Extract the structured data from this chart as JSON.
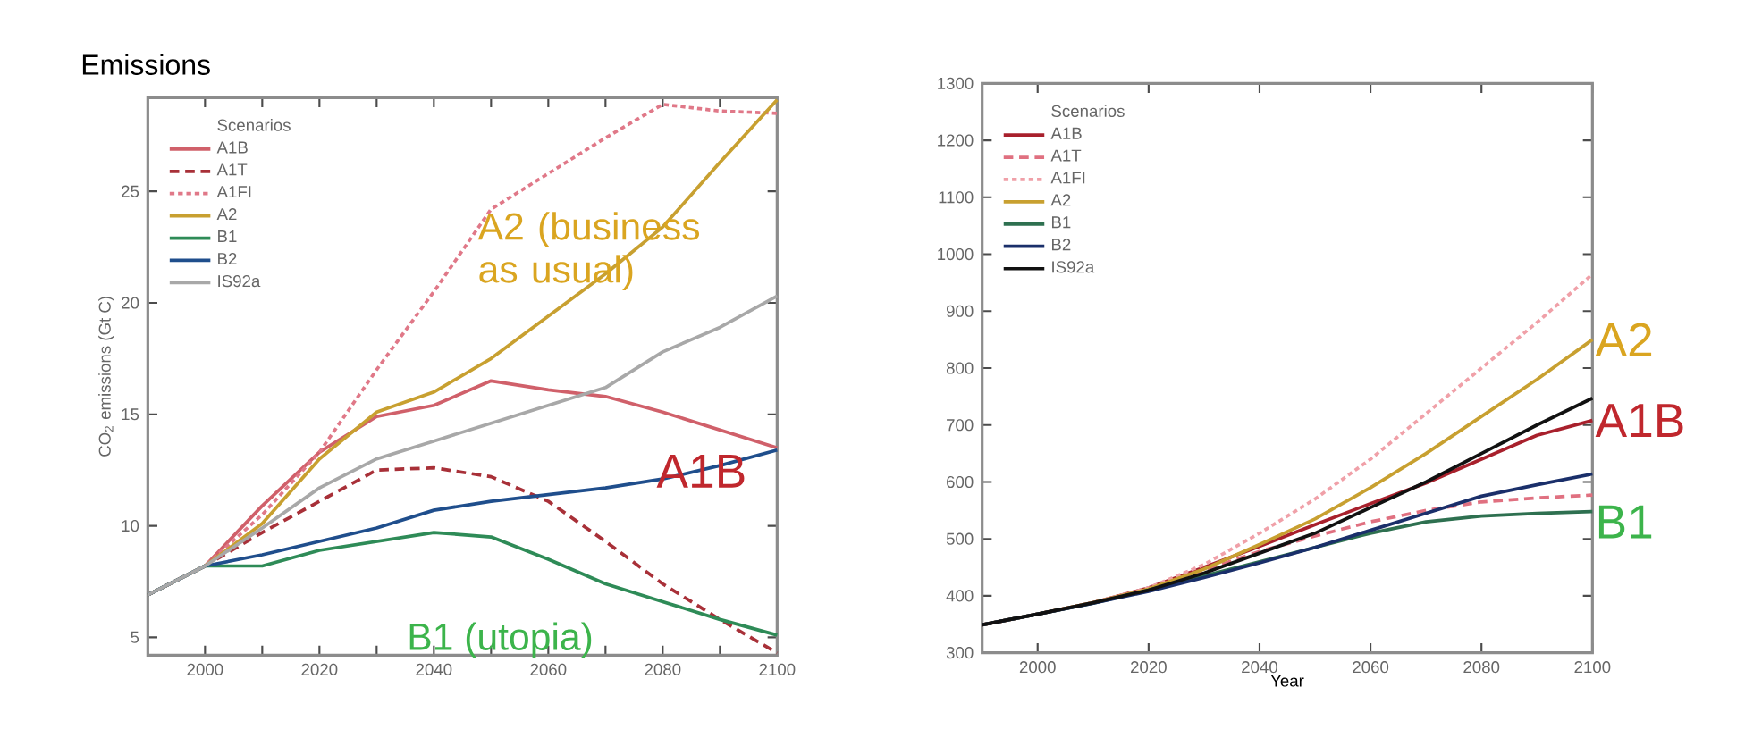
{
  "chart_data": [
    {
      "type": "line",
      "title": "Emissions",
      "ylabel": "CO$_{2}$ emissions (Gt C)",
      "legend_title": "Scenarios",
      "legend": "top left",
      "grid": false,
      "x": [
        1990,
        2000,
        2010,
        2020,
        2030,
        2040,
        2050,
        2060,
        2070,
        2080,
        2090,
        2100
      ],
      "xlim": [
        1990,
        2100
      ],
      "ylim": [
        4.2,
        29.2
      ],
      "xticks": [
        2000,
        {
          "value": 2010,
          "label": null
        },
        2020,
        {
          "value": 2030,
          "label": null
        },
        2040,
        {
          "value": 2050,
          "label": null
        },
        2060,
        {
          "value": 2070,
          "label": null
        },
        2080,
        {
          "value": 2090,
          "label": null
        },
        2100
      ],
      "yticks": [
        5,
        10,
        15,
        20,
        25
      ],
      "series": [
        {
          "name": "A1B",
          "color": "#d0606a",
          "values": [
            6.9,
            8.2,
            10.9,
            13.3,
            14.9,
            15.4,
            16.5,
            16.1,
            15.8,
            15.1,
            14.3,
            13.5
          ]
        },
        {
          "name": "A1T",
          "color": "#a83038",
          "line_style": "dashed",
          "values": [
            6.9,
            8.2,
            9.7,
            11.1,
            12.5,
            12.6,
            12.2,
            11.1,
            9.3,
            7.4,
            5.8,
            4.3
          ]
        },
        {
          "name": "A1FI",
          "color": "#e07888",
          "line_style": "dotted",
          "values": [
            6.9,
            8.2,
            10.5,
            13.3,
            17.0,
            20.5,
            24.2,
            25.8,
            27.4,
            28.9,
            28.6,
            28.5
          ]
        },
        {
          "name": "A2",
          "color": "#c8a030",
          "values": [
            6.9,
            8.2,
            10.1,
            13.0,
            15.1,
            16.0,
            17.5,
            19.4,
            21.3,
            23.4,
            26.3,
            29.1
          ]
        },
        {
          "name": "B1",
          "color": "#2e8b57",
          "values": [
            6.9,
            8.2,
            8.2,
            8.9,
            9.3,
            9.7,
            9.5,
            8.5,
            7.4,
            6.6,
            5.8,
            5.1
          ]
        },
        {
          "name": "B2",
          "color": "#1f4e8c",
          "values": [
            6.9,
            8.2,
            8.7,
            9.3,
            9.9,
            10.7,
            11.1,
            11.4,
            11.7,
            12.1,
            12.7,
            13.4
          ]
        },
        {
          "name": "IS92a",
          "color": "#a8a8a8",
          "values": [
            6.9,
            8.2,
            9.9,
            11.7,
            13.0,
            13.8,
            14.6,
            15.4,
            16.2,
            17.8,
            18.9,
            20.3
          ]
        }
      ],
      "annotations": [
        "A2 (business as usual)",
        "A1B",
        "B1 (utopia)"
      ]
    },
    {
      "type": "line",
      "xlabel": "Year",
      "legend_title": "Scenarios",
      "legend": "top left",
      "grid": false,
      "x": [
        1990,
        2000,
        2010,
        2020,
        2030,
        2040,
        2050,
        2060,
        2070,
        2080,
        2090,
        2100
      ],
      "xlim": [
        1990,
        2100
      ],
      "ylim": [
        300,
        1300
      ],
      "xticks": [
        2000,
        2020,
        2040,
        2060,
        2080,
        2100
      ],
      "yticks": [
        300,
        400,
        500,
        600,
        700,
        800,
        900,
        1000,
        1100,
        1200,
        1300
      ],
      "series": [
        {
          "name": "A1B",
          "color": "#a8202c",
          "values": [
            349,
            368,
            388,
            414,
            450,
            487,
            525,
            562,
            598,
            640,
            682,
            708
          ]
        },
        {
          "name": "A1T",
          "color": "#e07080",
          "line_style": "dashed",
          "values": [
            349,
            368,
            388,
            413,
            445,
            478,
            505,
            530,
            550,
            565,
            572,
            577
          ]
        },
        {
          "name": "A1FI",
          "color": "#f0a0a8",
          "line_style": "dotted",
          "values": [
            349,
            368,
            388,
            414,
            455,
            510,
            570,
            640,
            720,
            800,
            880,
            965
          ]
        },
        {
          "name": "A2",
          "color": "#c8a030",
          "values": [
            349,
            368,
            388,
            412,
            447,
            490,
            535,
            590,
            650,
            715,
            780,
            850
          ]
        },
        {
          "name": "B1",
          "color": "#2e7050",
          "values": [
            349,
            368,
            387,
            410,
            435,
            460,
            485,
            510,
            530,
            540,
            545,
            548
          ]
        },
        {
          "name": "B2",
          "color": "#1a2f6a",
          "values": [
            349,
            368,
            387,
            408,
            432,
            458,
            485,
            515,
            545,
            575,
            595,
            614
          ]
        },
        {
          "name": "IS92a",
          "color": "#111111",
          "values": [
            349,
            368,
            388,
            410,
            440,
            475,
            510,
            555,
            600,
            650,
            700,
            747
          ]
        }
      ],
      "annotations": [
        "A2",
        "A1B",
        "B1"
      ]
    }
  ]
}
